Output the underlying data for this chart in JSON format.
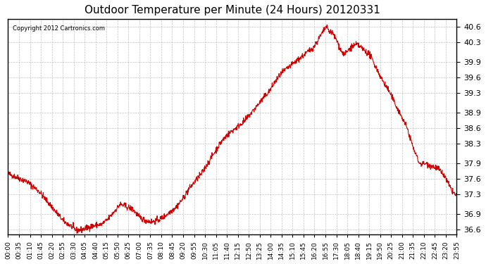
{
  "title": "Outdoor Temperature per Minute (24 Hours) 20120331",
  "copyright_text": "Copyright 2012 Cartronics.com",
  "line_color": "#cc0000",
  "background_color": "#ffffff",
  "grid_color": "#aaaaaa",
  "ylim": [
    36.5,
    40.75
  ],
  "yticks": [
    36.6,
    36.9,
    37.3,
    37.6,
    37.9,
    38.3,
    38.6,
    38.9,
    39.3,
    39.6,
    39.9,
    40.3,
    40.6
  ],
  "xlabel_fontsize": 6.5,
  "ylabel_fontsize": 8,
  "title_fontsize": 11,
  "xtick_labels": [
    "00:00",
    "00:35",
    "01:10",
    "01:45",
    "02:20",
    "02:55",
    "03:30",
    "04:05",
    "04:40",
    "05:15",
    "05:50",
    "06:25",
    "07:00",
    "07:35",
    "08:10",
    "08:45",
    "09:20",
    "09:55",
    "10:30",
    "11:05",
    "11:40",
    "12:15",
    "12:50",
    "13:25",
    "14:00",
    "14:35",
    "15:10",
    "15:45",
    "16:20",
    "16:55",
    "17:30",
    "18:05",
    "18:40",
    "19:15",
    "19:50",
    "20:25",
    "21:00",
    "21:35",
    "22:10",
    "22:45",
    "23:20",
    "23:55"
  ]
}
